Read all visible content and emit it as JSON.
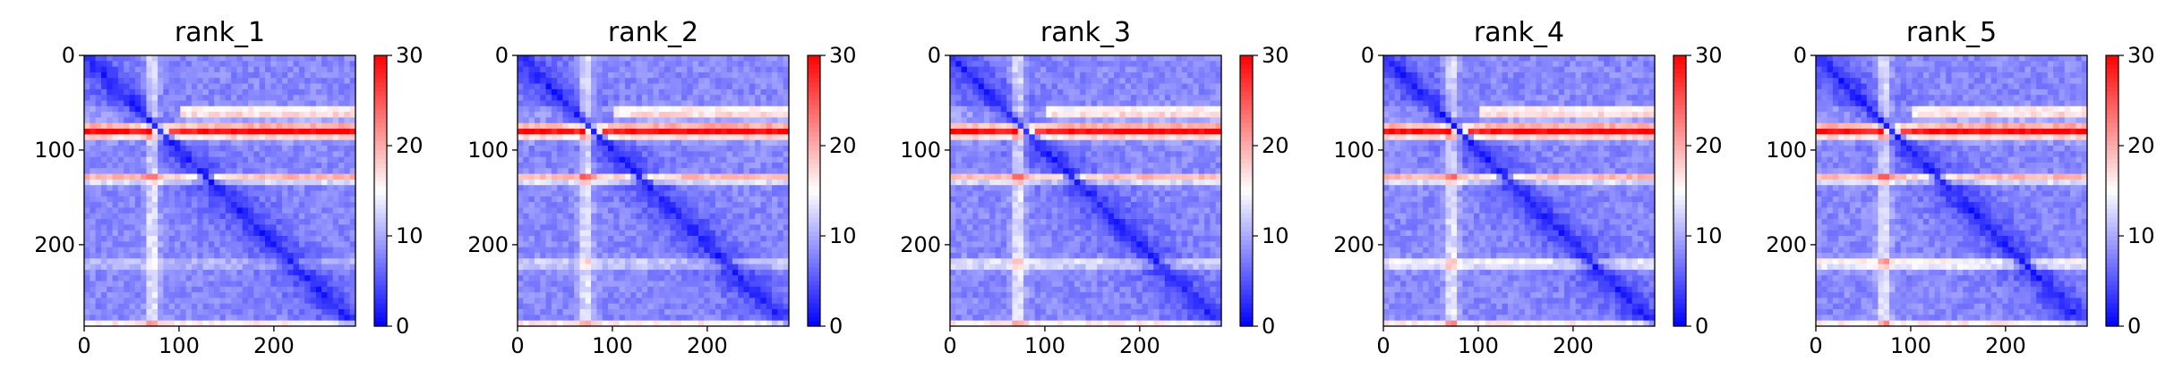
{
  "chart_data": [
    {
      "type": "heatmap",
      "title": "rank_1",
      "cmap": "bwr",
      "xlim": [
        0,
        286
      ],
      "ylim": [
        286,
        0
      ],
      "xticks": [
        0,
        100,
        200
      ],
      "yticks": [
        0,
        100,
        200
      ],
      "colorbar": {
        "range": [
          0,
          30
        ],
        "ticks": [
          0,
          10,
          20,
          30
        ]
      },
      "variant": 0
    },
    {
      "type": "heatmap",
      "title": "rank_2",
      "cmap": "bwr",
      "xlim": [
        0,
        286
      ],
      "ylim": [
        286,
        0
      ],
      "xticks": [
        0,
        100,
        200
      ],
      "yticks": [
        0,
        100,
        200
      ],
      "colorbar": {
        "range": [
          0,
          30
        ],
        "ticks": [
          0,
          10,
          20,
          30
        ]
      },
      "variant": 1
    },
    {
      "type": "heatmap",
      "title": "rank_3",
      "cmap": "bwr",
      "xlim": [
        0,
        286
      ],
      "ylim": [
        286,
        0
      ],
      "xticks": [
        0,
        100,
        200
      ],
      "yticks": [
        0,
        100,
        200
      ],
      "colorbar": {
        "range": [
          0,
          30
        ],
        "ticks": [
          0,
          10,
          20,
          30
        ]
      },
      "variant": 2
    },
    {
      "type": "heatmap",
      "title": "rank_4",
      "cmap": "bwr",
      "xlim": [
        0,
        286
      ],
      "ylim": [
        286,
        0
      ],
      "xticks": [
        0,
        100,
        200
      ],
      "yticks": [
        0,
        100,
        200
      ],
      "colorbar": {
        "range": [
          0,
          30
        ],
        "ticks": [
          0,
          10,
          20,
          30
        ]
      },
      "variant": 3
    },
    {
      "type": "heatmap",
      "title": "rank_5",
      "cmap": "bwr",
      "xlim": [
        0,
        286
      ],
      "ylim": [
        286,
        0
      ],
      "xticks": [
        0,
        100,
        200
      ],
      "yticks": [
        0,
        100,
        200
      ],
      "colorbar": {
        "range": [
          0,
          30
        ],
        "ticks": [
          0,
          10,
          20,
          30
        ]
      },
      "variant": 4
    }
  ]
}
